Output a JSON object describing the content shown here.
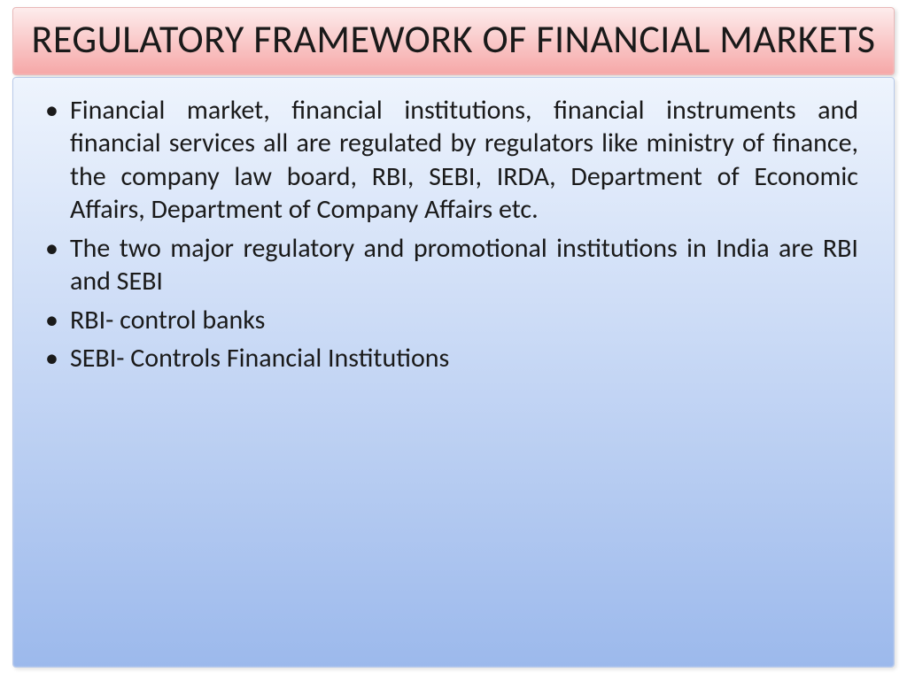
{
  "title": "REGULATORY FRAMEWORK OF FINANCIAL MARKETS",
  "bullets": [
    "Financial market, financial institutions, financial instruments and financial services all are regulated by regulators like ministry of finance, the company law board, RBI, SEBI, IRDA, Department of Economic Affairs, Department of Company Affairs etc.",
    "The two major regulatory and promotional institutions in India are RBI and SEBI",
    "RBI- control banks",
    "SEBI- Controls Financial Institutions"
  ],
  "style": {
    "title_grad_top": "#fdecec",
    "title_grad_bot": "#f6a7a7",
    "title_border": "#e9b8b8",
    "title_color": "#1a1a1a",
    "body_grad_top": "#eef4fd",
    "body_grad_bot": "#9cb9ec",
    "body_border": "#b8c9e9",
    "bullet_color": "#1a1a1a"
  }
}
